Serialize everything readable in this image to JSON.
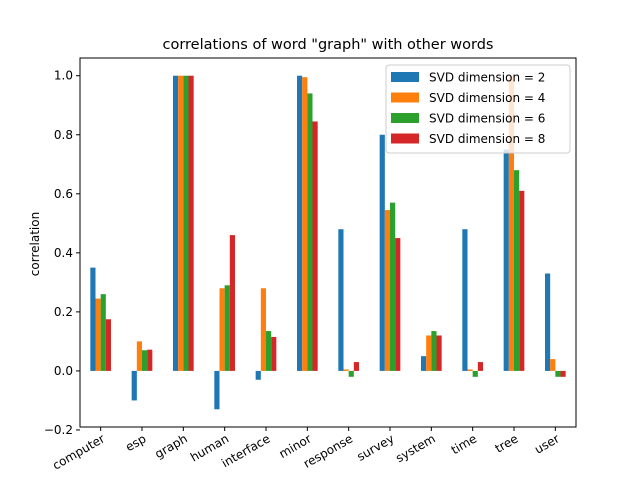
{
  "chart_data": {
    "type": "bar",
    "title": "correlations of word \"graph\" with other words",
    "xlabel": "",
    "ylabel": "correlation",
    "ylim": [
      -0.19,
      1.06
    ],
    "yticks": [
      "−0.2",
      "0.0",
      "0.2",
      "0.4",
      "0.6",
      "0.8",
      "1.0"
    ],
    "categories": [
      "computer",
      "esp",
      "graph",
      "human",
      "interface",
      "minor",
      "response",
      "survey",
      "system",
      "time",
      "tree",
      "user"
    ],
    "series": [
      {
        "name": "SVD dimension = 2",
        "color": "#1f77b4",
        "values": [
          0.35,
          -0.1,
          1.0,
          -0.13,
          -0.03,
          1.0,
          0.48,
          0.8,
          0.05,
          0.48,
          0.75,
          0.33
        ]
      },
      {
        "name": "SVD dimension = 4",
        "color": "#ff7f0e",
        "values": [
          0.245,
          0.1,
          1.0,
          0.28,
          0.28,
          0.995,
          0.005,
          0.545,
          0.12,
          0.005,
          1.0,
          0.04
        ]
      },
      {
        "name": "SVD dimension = 6",
        "color": "#2ca02c",
        "values": [
          0.26,
          0.07,
          1.0,
          0.29,
          0.135,
          0.94,
          -0.02,
          0.57,
          0.135,
          -0.02,
          0.68,
          -0.02
        ]
      },
      {
        "name": "SVD dimension = 8",
        "color": "#d62728",
        "values": [
          0.175,
          0.072,
          1.0,
          0.46,
          0.115,
          0.845,
          0.03,
          0.45,
          0.12,
          0.03,
          0.61,
          -0.02
        ]
      }
    ],
    "legend": "top-right",
    "grid": false
  }
}
